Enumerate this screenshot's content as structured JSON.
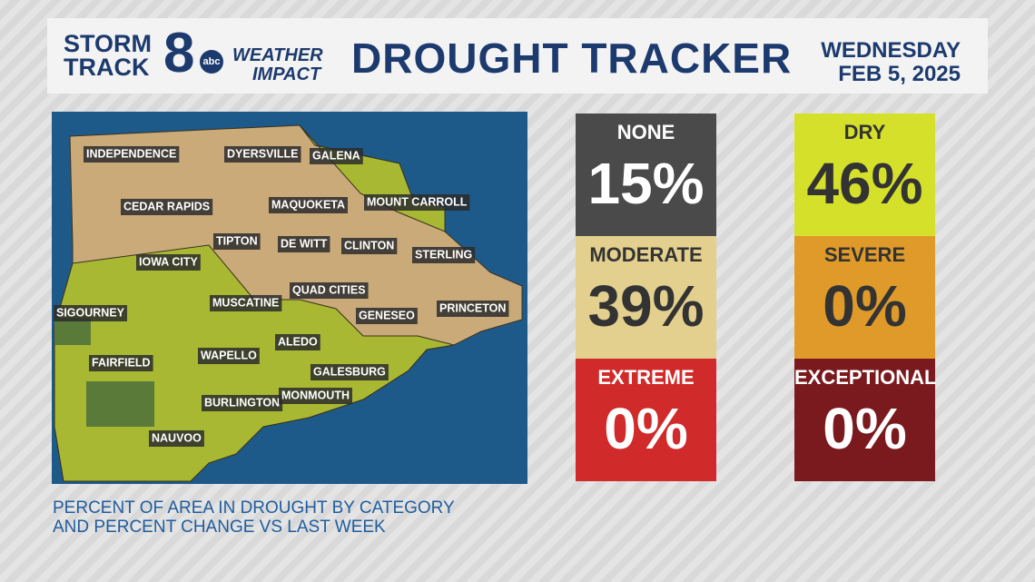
{
  "header": {
    "logo": {
      "storm": "STORM",
      "track": "TRACK",
      "number": "8",
      "network": "abc",
      "weather": "WEATHER",
      "impact": "IMPACT"
    },
    "title": "DROUGHT TRACKER",
    "day": "WEDNESDAY",
    "date": "FEB 5, 2025"
  },
  "map": {
    "labels": [
      "INDEPENDENCE",
      "DYERSVILLE",
      "GALENA",
      "CEDAR RAPIDS",
      "MAQUOKETA",
      "MOUNT CARROLL",
      "TIPTON",
      "DE WITT",
      "CLINTON",
      "STERLING",
      "IOWA CITY",
      "QUAD CITIES",
      "MUSCATINE",
      "GENESEO",
      "PRINCETON",
      "SIGOURNEY",
      "ALEDO",
      "WAPELLO",
      "FAIRFIELD",
      "GALESBURG",
      "BURLINGTON",
      "MONMOUTH",
      "NAUVOO"
    ]
  },
  "tiles": [
    {
      "label": "NONE",
      "value": "15%"
    },
    {
      "label": "DRY",
      "value": "46%"
    },
    {
      "label": "MODERATE",
      "value": "39%"
    },
    {
      "label": "SEVERE",
      "value": "0%"
    },
    {
      "label": "EXTREME",
      "value": "0%"
    },
    {
      "label": "EXCEPTIONAL",
      "value": "0%"
    }
  ],
  "caption": [
    "PERCENT OF AREA IN DROUGHT BY CATEGORY",
    "AND PERCENT CHANGE VS LAST WEEK"
  ]
}
